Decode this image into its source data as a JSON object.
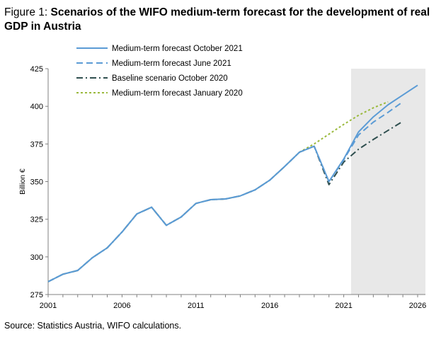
{
  "figure": {
    "prefix": "Figure 1: ",
    "title": "Scenarios of the WIFO medium-term forecast for the development of real GDP in Austria",
    "source": "Source: Statistics Austria, WIFO calculations."
  },
  "chart_data": {
    "type": "line",
    "ylabel": "Billion €",
    "xlabel": "",
    "xlim": [
      2001,
      2026
    ],
    "ylim": [
      275,
      425
    ],
    "xticks": [
      2001,
      2006,
      2011,
      2016,
      2021,
      2026
    ],
    "yticks": [
      275,
      300,
      325,
      350,
      375,
      400,
      425
    ],
    "shaded_region": {
      "x_from": 2021.5,
      "x_to": 2026.6,
      "color": "#e8e8e8"
    },
    "legend_position": "top-left",
    "series": [
      {
        "name": "Medium-term forecast October 2021",
        "color": "#5b9bd5",
        "style": "solid",
        "x": [
          2001,
          2002,
          2003,
          2004,
          2005,
          2006,
          2007,
          2008,
          2009,
          2010,
          2011,
          2012,
          2013,
          2014,
          2015,
          2016,
          2017,
          2018,
          2019,
          2020,
          2021,
          2022,
          2023,
          2024,
          2025,
          2026
        ],
        "y": [
          283.5,
          288.5,
          291.0,
          299.5,
          306.0,
          316.5,
          328.5,
          333.0,
          321.0,
          326.5,
          335.5,
          338.0,
          338.5,
          340.5,
          344.5,
          351.0,
          360.0,
          369.5,
          373.5,
          350.0,
          365.0,
          383.0,
          393.0,
          401.0,
          407.5,
          414.0
        ]
      },
      {
        "name": "Medium-term forecast June 2021",
        "color": "#5b9bd5",
        "style": "dash",
        "x": [
          2001,
          2002,
          2003,
          2004,
          2005,
          2006,
          2007,
          2008,
          2009,
          2010,
          2011,
          2012,
          2013,
          2014,
          2015,
          2016,
          2017,
          2018,
          2019,
          2020,
          2021,
          2022,
          2023,
          2024,
          2025
        ],
        "y": [
          283.5,
          288.5,
          291.0,
          299.5,
          306.0,
          316.5,
          328.5,
          333.0,
          321.0,
          326.5,
          335.5,
          338.0,
          338.5,
          340.5,
          344.5,
          351.0,
          360.0,
          369.5,
          373.5,
          350.0,
          364.5,
          381.0,
          389.5,
          396.0,
          403.0
        ]
      },
      {
        "name": "Baseline scenario October 2020",
        "color": "#2f4f4f",
        "style": "dashdot",
        "x": [
          2001,
          2002,
          2003,
          2004,
          2005,
          2006,
          2007,
          2008,
          2009,
          2010,
          2011,
          2012,
          2013,
          2014,
          2015,
          2016,
          2017,
          2018,
          2019,
          2020,
          2021,
          2022,
          2023,
          2024,
          2025
        ],
        "y": [
          283.5,
          288.5,
          291.0,
          299.5,
          306.0,
          316.5,
          328.5,
          333.0,
          321.0,
          326.5,
          335.5,
          338.0,
          338.5,
          340.5,
          344.5,
          351.0,
          360.0,
          369.5,
          373.5,
          348.0,
          363.0,
          371.5,
          378.0,
          384.0,
          390.0
        ]
      },
      {
        "name": "Medium-term forecast January 2020",
        "color": "#9ab93c",
        "style": "dot",
        "x": [
          2001,
          2002,
          2003,
          2004,
          2005,
          2006,
          2007,
          2008,
          2009,
          2010,
          2011,
          2012,
          2013,
          2014,
          2015,
          2016,
          2017,
          2018,
          2019,
          2020,
          2021,
          2022,
          2023,
          2024
        ],
        "y": [
          283.5,
          288.5,
          291.0,
          299.5,
          306.0,
          316.5,
          328.5,
          333.0,
          321.0,
          326.5,
          335.5,
          338.0,
          338.5,
          340.5,
          344.5,
          351.0,
          360.0,
          369.5,
          375.0,
          381.5,
          388.0,
          394.0,
          399.0,
          403.0
        ]
      }
    ]
  }
}
